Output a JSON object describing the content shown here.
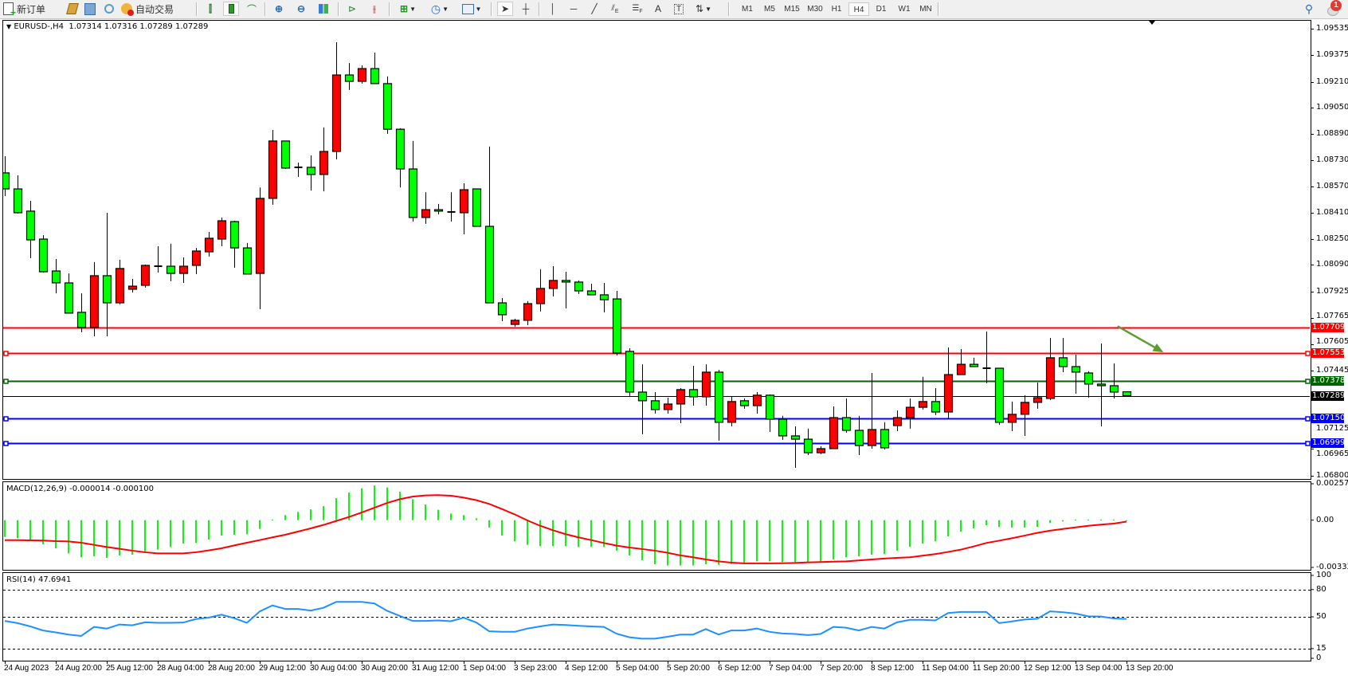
{
  "toolbar": {
    "new_order_label": "新订单",
    "auto_trade_label": "自动交易",
    "timeframes": [
      "M1",
      "M5",
      "M15",
      "M30",
      "H1",
      "H4",
      "D1",
      "W1",
      "MN"
    ],
    "selected_timeframe": "H4",
    "notification_count": "1",
    "tools": [
      "new-order-icon",
      "market-watch-icon",
      "data-window-icon",
      "signals-icon",
      "auto-trading-icon",
      "bar-chart-icon",
      "candlestick-icon",
      "line-chart-icon",
      "zoom-in-icon",
      "zoom-out-icon",
      "tile-windows-icon",
      "autoscroll-icon",
      "chart-shift-icon",
      "indicators-icon",
      "periods-icon",
      "templates-icon",
      "cursor-icon",
      "crosshair-icon",
      "vertical-line-icon",
      "horizontal-line-icon",
      "trendline-icon",
      "equidistant-channel-icon",
      "fibonacci-icon",
      "text-icon",
      "text-label-icon",
      "arrows-icon"
    ],
    "tool_labels": {
      "fib_e": "E",
      "fib_f": "F",
      "text": "A",
      "text_label": "T"
    }
  },
  "chart": {
    "symbol": "EURUSD-,H4",
    "open": "1.07314",
    "high": "1.07316",
    "low": "1.07289",
    "close": "1.07289",
    "bull_color": "#ff0000",
    "bear_color": "#00ff00"
  },
  "chart_data": [
    {
      "type": "candlestick",
      "ylim": [
        1.068,
        1.09535
      ],
      "y_ticks": [
        "1.09535",
        "1.09375",
        "1.09210",
        "1.09050",
        "1.08890",
        "1.08730",
        "1.08570",
        "1.08410",
        "1.08250",
        "1.08090",
        "1.07925",
        "1.07765",
        "1.07605",
        "1.07445",
        "1.07125",
        "1.06965",
        "1.06800"
      ],
      "time_labels": [
        "24 Aug 2023",
        "24 Aug 20:00",
        "25 Aug 12:00",
        "28 Aug 04:00",
        "28 Aug 20:00",
        "29 Aug 12:00",
        "30 Aug 04:00",
        "30 Aug 20:00",
        "31 Aug 12:00",
        "1 Sep 04:00",
        "3 Sep 23:00",
        "4 Sep 12:00",
        "5 Sep 04:00",
        "5 Sep 20:00",
        "6 Sep 12:00",
        "7 Sep 04:00",
        "7 Sep 20:00",
        "8 Sep 12:00",
        "11 Sep 04:00",
        "11 Sep 20:00",
        "12 Sep 12:00",
        "13 Sep 04:00",
        "13 Sep 20:00"
      ],
      "ohlc_order": [
        "open",
        "high",
        "low",
        "close"
      ],
      "candles": [
        [
          1.08653,
          1.08755,
          1.08511,
          1.08555
        ],
        [
          1.08555,
          1.08638,
          1.08404,
          1.08409
        ],
        [
          1.08419,
          1.08482,
          1.08131,
          1.08243
        ],
        [
          1.08248,
          1.08272,
          1.08043,
          1.08048
        ],
        [
          1.08053,
          1.08126,
          1.07916,
          1.0798
        ],
        [
          1.0798,
          1.08038,
          1.07795,
          1.07795
        ],
        [
          1.078,
          1.07916,
          1.07678,
          1.07707
        ],
        [
          1.07707,
          1.08107,
          1.07653,
          1.08024
        ],
        [
          1.08024,
          1.08409,
          1.07653,
          1.07858
        ],
        [
          1.07858,
          1.08121,
          1.07848,
          1.08068
        ],
        [
          1.07941,
          1.08004,
          1.07921,
          1.0796
        ],
        [
          1.07965,
          1.08092,
          1.07951,
          1.08087
        ],
        [
          1.08082,
          1.08204,
          1.08043,
          1.08082
        ],
        [
          1.08082,
          1.08219,
          1.0799,
          1.08038
        ],
        [
          1.08038,
          1.08136,
          1.0798,
          1.08082
        ],
        [
          1.08087,
          1.08194,
          1.08034,
          1.08175
        ],
        [
          1.0817,
          1.08292,
          1.08141,
          1.08253
        ],
        [
          1.08248,
          1.0838,
          1.08204,
          1.0836
        ],
        [
          1.08355,
          1.0836,
          1.08073,
          1.08194
        ],
        [
          1.08194,
          1.08224,
          1.08034,
          1.08034
        ],
        [
          1.08038,
          1.08564,
          1.07819,
          1.08497
        ],
        [
          1.08497,
          1.08916,
          1.08458,
          1.08848
        ],
        [
          1.08848,
          1.08848,
          1.08677,
          1.08682
        ],
        [
          1.08687,
          1.08716,
          1.08628,
          1.08687
        ],
        [
          1.08687,
          1.0876,
          1.08545,
          1.08643
        ],
        [
          1.08643,
          1.08931,
          1.0854,
          1.08784
        ],
        [
          1.08784,
          1.09452,
          1.08736,
          1.09252
        ],
        [
          1.09252,
          1.09325,
          1.0916,
          1.09213
        ],
        [
          1.09213,
          1.09311,
          1.09199,
          1.09291
        ],
        [
          1.09291,
          1.09389,
          1.09199,
          1.09199
        ],
        [
          1.09199,
          1.09243,
          1.08892,
          1.0892
        ],
        [
          1.0892,
          1.08926,
          1.08564,
          1.08677
        ],
        [
          1.08677,
          1.08848,
          1.08355,
          1.0838
        ],
        [
          1.0838,
          1.08535,
          1.08341,
          1.08428
        ],
        [
          1.08428,
          1.08463,
          1.08399,
          1.08419
        ],
        [
          1.08414,
          1.08535,
          1.08355,
          1.08414
        ],
        [
          1.08409,
          1.08589,
          1.08277,
          1.0855
        ],
        [
          1.08555,
          1.08555,
          1.08326,
          1.08326
        ],
        [
          1.08326,
          1.08814,
          1.07858,
          1.07858
        ],
        [
          1.07858,
          1.07887,
          1.07746,
          1.07785
        ],
        [
          1.07726,
          1.07761,
          1.07712,
          1.07751
        ],
        [
          1.07751,
          1.07868,
          1.07721,
          1.07853
        ],
        [
          1.07853,
          1.08063,
          1.07805,
          1.07946
        ],
        [
          1.07946,
          1.08082,
          1.07897,
          1.07995
        ],
        [
          1.07995,
          1.08048,
          1.07824,
          1.07985
        ],
        [
          1.07985,
          1.07995,
          1.07912,
          1.07931
        ],
        [
          1.07931,
          1.07975,
          1.07907,
          1.07907
        ],
        [
          1.07907,
          1.0798,
          1.078,
          1.07877
        ],
        [
          1.07882,
          1.07931,
          1.07536,
          1.07551
        ],
        [
          1.07561,
          1.0758,
          1.07288,
          1.07312
        ],
        [
          1.07312,
          1.07482,
          1.07054,
          1.07259
        ],
        [
          1.07259,
          1.07312,
          1.0718,
          1.07205
        ],
        [
          1.07205,
          1.07278,
          1.0718,
          1.07239
        ],
        [
          1.07239,
          1.07336,
          1.07122,
          1.07327
        ],
        [
          1.07327,
          1.07473,
          1.07229,
          1.07283
        ],
        [
          1.07283,
          1.07482,
          1.07229,
          1.07434
        ],
        [
          1.07434,
          1.07448,
          1.07015,
          1.07127
        ],
        [
          1.07127,
          1.07283,
          1.07102,
          1.07254
        ],
        [
          1.07259,
          1.07273,
          1.0721,
          1.07229
        ],
        [
          1.07229,
          1.07312,
          1.0718,
          1.07293
        ],
        [
          1.07293,
          1.07297,
          1.07068,
          1.07146
        ],
        [
          1.07146,
          1.07166,
          1.0702,
          1.07044
        ],
        [
          1.07044,
          1.07102,
          1.06849,
          1.07024
        ],
        [
          1.07024,
          1.07088,
          1.06927,
          1.06941
        ],
        [
          1.06941,
          1.06981,
          1.06932,
          1.06966
        ],
        [
          1.06966,
          1.07224,
          1.06966,
          1.07156
        ],
        [
          1.07156,
          1.07273,
          1.07063,
          1.07078
        ],
        [
          1.07078,
          1.07166,
          1.06927,
          1.06985
        ],
        [
          1.06985,
          1.07429,
          1.06966,
          1.07083
        ],
        [
          1.07083,
          1.07127,
          1.06961,
          1.06971
        ],
        [
          1.07107,
          1.072,
          1.07073,
          1.07156
        ],
        [
          1.07156,
          1.07273,
          1.07088,
          1.07219
        ],
        [
          1.07219,
          1.07405,
          1.07205,
          1.07254
        ],
        [
          1.07254,
          1.07336,
          1.07171,
          1.0719
        ],
        [
          1.0719,
          1.07585,
          1.07146,
          1.07419
        ],
        [
          1.07419,
          1.07575,
          1.07419,
          1.07482
        ],
        [
          1.07482,
          1.07522,
          1.07468,
          1.07468
        ],
        [
          1.07458,
          1.07683,
          1.07366,
          1.07458
        ],
        [
          1.07458,
          1.07458,
          1.07112,
          1.07127
        ],
        [
          1.07127,
          1.07254,
          1.07073,
          1.07176
        ],
        [
          1.07176,
          1.07293,
          1.07044,
          1.07249
        ],
        [
          1.07249,
          1.0737,
          1.0721,
          1.07278
        ],
        [
          1.07273,
          1.07643,
          1.07263,
          1.07522
        ],
        [
          1.07522,
          1.07643,
          1.07434,
          1.07468
        ],
        [
          1.07468,
          1.07541,
          1.07302,
          1.07434
        ],
        [
          1.07429,
          1.07439,
          1.07278,
          1.07361
        ],
        [
          1.07361,
          1.07609,
          1.07102,
          1.07351
        ],
        [
          1.07351,
          1.07487,
          1.07273,
          1.07312
        ],
        [
          1.07314,
          1.07316,
          1.07289,
          1.07289
        ]
      ],
      "levels": [
        {
          "price": "1.07709",
          "color": "#ff0000",
          "text_color": "#ffffff",
          "handles": false
        },
        {
          "price": "1.07553",
          "color": "#ff0000",
          "text_color": "#ffffff",
          "handles": true
        },
        {
          "price": "1.07378",
          "color": "#006400",
          "text_color": "#ffffff",
          "handles": true
        },
        {
          "price": "1.07289",
          "color": "#000000",
          "text_color": "#ffffff",
          "handles": false,
          "thin": true
        },
        {
          "price": "1.07150",
          "color": "#0000ff",
          "text_color": "#ffffff",
          "handles": true
        },
        {
          "price": "1.06999",
          "color": "#0000ff",
          "text_color": "#ffffff",
          "handles": true
        }
      ],
      "arrow": {
        "color": "#5a9e32",
        "from_candle": 87.3,
        "from_price": 1.07715,
        "to_candle": 90.9,
        "to_price": 1.07555
      }
    },
    {
      "type": "bar+line",
      "title": "MACD(12,26,9) -0.000014 -0.000100",
      "ylim": [
        -0.003326,
        0.002572
      ],
      "y_ticks": [
        "0.002572",
        "0.00",
        "-0.003326"
      ],
      "histogram_color": "#00ff00",
      "signal_color": "#ff0000",
      "histogram": [
        -0.00116,
        -0.00125,
        -0.00138,
        -0.00167,
        -0.00195,
        -0.0023,
        -0.00257,
        -0.0025,
        -0.00261,
        -0.00244,
        -0.00239,
        -0.00222,
        -0.00204,
        -0.00186,
        -0.00162,
        -0.00158,
        -0.00134,
        -0.00107,
        -0.00101,
        -0.00097,
        -0.00061,
        4e-05,
        0.00035,
        0.00057,
        0.00075,
        0.00097,
        0.00152,
        0.00191,
        0.0022,
        0.00239,
        0.00226,
        0.00197,
        0.00145,
        0.00108,
        0.00072,
        0.00046,
        0.00035,
        0.00013,
        -0.00051,
        -0.00107,
        -0.00147,
        -0.00171,
        -0.0018,
        -0.0018,
        -0.0018,
        -0.00186,
        -0.00186,
        -0.00186,
        -0.00211,
        -0.00244,
        -0.00277,
        -0.00305,
        -0.00314,
        -0.00314,
        -0.00314,
        -0.00305,
        -0.00309,
        -0.00303,
        -0.00296,
        -0.00285,
        -0.00285,
        -0.0029,
        -0.0029,
        -0.0029,
        -0.00285,
        -0.00272,
        -0.00257,
        -0.0025,
        -0.00239,
        -0.00235,
        -0.00211,
        -0.00184,
        -0.00162,
        -0.00147,
        -0.00112,
        -0.00079,
        -0.00057,
        -0.00035,
        -0.00048,
        -0.00051,
        -0.00051,
        -0.00046,
        -0.0002,
        -9e-05,
        4e-05,
        4e-05,
        4e-05,
        4e-05,
        -1.4e-05
      ],
      "signal": [
        -0.00138,
        -0.00138,
        -0.0014,
        -0.00141,
        -0.00145,
        -0.00147,
        -0.00156,
        -0.00171,
        -0.00186,
        -0.00198,
        -0.00211,
        -0.00222,
        -0.0023,
        -0.0023,
        -0.0023,
        -0.00222,
        -0.00209,
        -0.00195,
        -0.00175,
        -0.00156,
        -0.00138,
        -0.00119,
        -0.00101,
        -0.00079,
        -0.00057,
        -0.00033,
        -6e-05,
        0.00022,
        0.00053,
        0.00086,
        0.00119,
        0.00145,
        0.00163,
        0.00171,
        0.00173,
        0.00169,
        0.00156,
        0.00138,
        0.00112,
        0.00077,
        0.0004,
        -2e-05,
        -0.00039,
        -0.0007,
        -0.00097,
        -0.00119,
        -0.00138,
        -0.00158,
        -0.00176,
        -0.00189,
        -0.002,
        -0.00211,
        -0.00226,
        -0.00244,
        -0.00257,
        -0.00272,
        -0.00285,
        -0.00294,
        -0.00299,
        -0.00299,
        -0.00299,
        -0.00298,
        -0.00296,
        -0.00292,
        -0.0029,
        -0.00287,
        -0.00285,
        -0.00279,
        -0.00272,
        -0.00266,
        -0.00261,
        -0.00257,
        -0.00246,
        -0.00235,
        -0.0022,
        -0.00204,
        -0.00182,
        -0.00158,
        -0.00142,
        -0.00125,
        -0.00107,
        -0.00088,
        -0.00073,
        -0.00061,
        -0.0005,
        -0.00039,
        -0.00031,
        -0.00024,
        -0.0001
      ]
    },
    {
      "type": "line",
      "title": "RSI(14) 47.6941",
      "ylim": [
        0,
        100
      ],
      "y_ticks": [
        "100",
        "80",
        "50",
        "15",
        "0"
      ],
      "levels": [
        80,
        50,
        15
      ],
      "color": "#1e90ff",
      "values": [
        45.5,
        43.1,
        39.5,
        35,
        32.9,
        30.5,
        29,
        38.9,
        37.1,
        41.6,
        40.7,
        44,
        43.4,
        43.4,
        43.7,
        47.6,
        49.1,
        52.4,
        48.5,
        43.4,
        56,
        62.6,
        58.7,
        58.7,
        56.9,
        59.9,
        66.5,
        66.5,
        66.5,
        64.7,
        56.6,
        50.9,
        45.5,
        45.5,
        46.1,
        45.2,
        49.1,
        43.7,
        34.1,
        33.5,
        33.5,
        37.1,
        39.5,
        41.6,
        41,
        40.1,
        39.5,
        38.9,
        31.4,
        27.5,
        26,
        26,
        28.1,
        30.5,
        30.5,
        36.5,
        30.5,
        35,
        35,
        37.1,
        33.5,
        31.7,
        31.1,
        29.9,
        31.1,
        38.9,
        38,
        35,
        38.9,
        37.1,
        44,
        46.7,
        46.7,
        46.1,
        54.2,
        55.4,
        55.4,
        55.4,
        43.1,
        44.9,
        47,
        47.9,
        56,
        55.1,
        53.6,
        50.6,
        50.3,
        48.2,
        47.6941
      ]
    }
  ]
}
